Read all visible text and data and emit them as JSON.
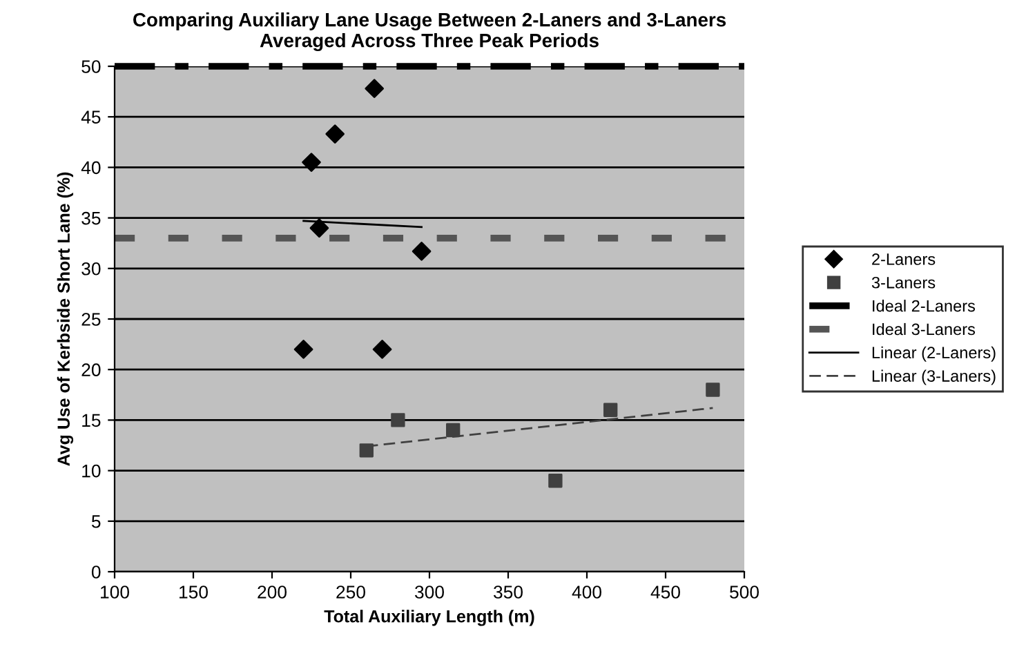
{
  "chart_data": {
    "type": "scatter",
    "title": "Comparing Auxiliary Lane Usage Between 2-Laners and 3-Laners\nAveraged Across Three Peak Periods",
    "xlabel": "Total Auxiliary Length (m)",
    "ylabel": "Avg Use of Kerbside Short Lane (%)",
    "series": [
      {
        "name": "2-Laners",
        "marker": "diamond",
        "color": "#000000",
        "x": [
          220,
          225,
          230,
          240,
          265,
          270,
          295
        ],
        "values": [
          22,
          40.5,
          34,
          43.3,
          47.8,
          22,
          31.7
        ]
      },
      {
        "name": "3-Laners",
        "marker": "square",
        "color": "#404040",
        "x": [
          260,
          280,
          315,
          380,
          415,
          480
        ],
        "values": [
          12,
          15,
          14,
          9,
          16,
          18
        ]
      },
      {
        "name": "Linear (2-Laners)",
        "type": "line",
        "line_style": "solid",
        "color": "#000000",
        "x": [
          220,
          295
        ],
        "values": [
          34.7,
          34.1
        ]
      },
      {
        "name": "Linear (3-Laners)",
        "type": "line",
        "line_style": "dashed",
        "color": "#404040",
        "x": [
          260,
          480
        ],
        "values": [
          12.4,
          16.2
        ]
      }
    ],
    "ref_lines": [
      {
        "axis": "y",
        "value": 50,
        "label": "Ideal 2-Laners",
        "color": "#000000",
        "line_style": "dashdot"
      },
      {
        "axis": "y",
        "value": 33,
        "label": "Ideal 3-Laners",
        "color": "#555555",
        "line_style": "dotted"
      }
    ],
    "xlim": [
      100,
      500
    ],
    "xticks": [
      100,
      150,
      200,
      250,
      300,
      350,
      400,
      450,
      500
    ],
    "ylim": [
      0,
      50
    ],
    "yticks": [
      0,
      5,
      10,
      15,
      20,
      25,
      30,
      35,
      40,
      45,
      50
    ],
    "grid": "y",
    "legend": "right"
  }
}
